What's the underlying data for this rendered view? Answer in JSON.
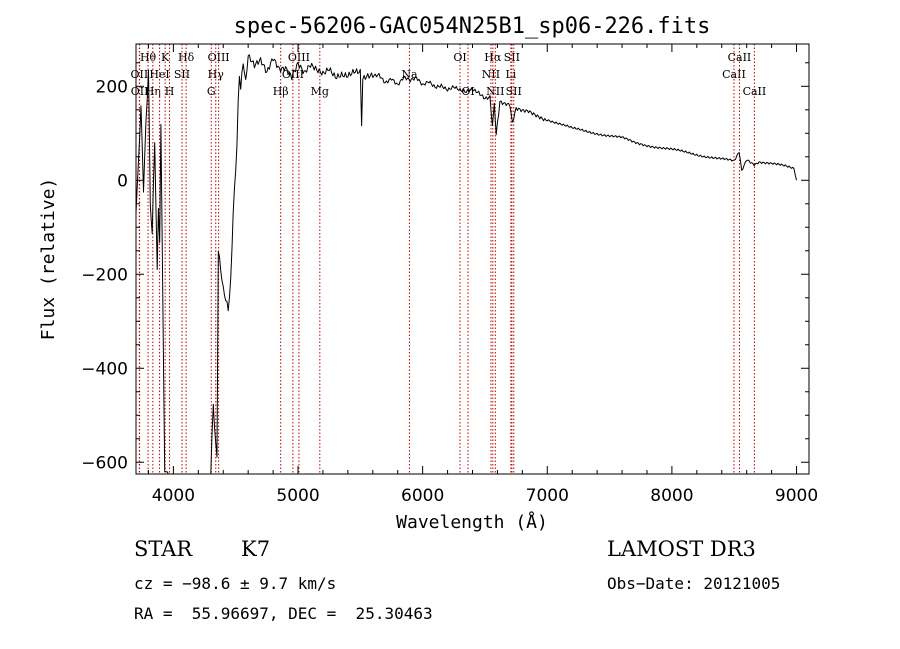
{
  "chart_data": {
    "type": "line",
    "title": "spec-56206-GAC054N25B1_sp06-226.fits",
    "xlabel": "Wavelength (Å)",
    "ylabel": "Flux (relative)",
    "xlim": [
      3700,
      9100
    ],
    "ylim": [
      -625,
      290
    ],
    "xticks": [
      4000,
      5000,
      6000,
      7000,
      8000,
      9000
    ],
    "yticks": [
      -600,
      -400,
      -200,
      0,
      200
    ],
    "series": [
      {
        "name": "flux",
        "x": [
          3700,
          3720,
          3740,
          3760,
          3780,
          3800,
          3815,
          3830,
          3850,
          3870,
          3880,
          3890,
          3900,
          3910,
          3930,
          3950,
          3960,
          3970,
          4000,
          4100,
          4200,
          4300,
          4320,
          4340,
          4350,
          4360,
          4380,
          4400,
          4420,
          4440,
          4460,
          4480,
          4500,
          4510,
          4520,
          4530,
          4540,
          4560,
          4580,
          4600,
          4650,
          4700,
          4750,
          4800,
          4850,
          4900,
          4950,
          5000,
          5050,
          5100,
          5150,
          5200,
          5250,
          5300,
          5350,
          5400,
          5450,
          5500,
          5510,
          5520,
          5550,
          5600,
          5650,
          5700,
          5750,
          5800,
          5850,
          5900,
          5950,
          6000,
          6050,
          6100,
          6150,
          6200,
          6250,
          6300,
          6350,
          6400,
          6450,
          6500,
          6540,
          6560,
          6575,
          6590,
          6620,
          6650,
          6700,
          6720,
          6750,
          6800,
          6850,
          6900,
          6950,
          7000,
          7050,
          7100,
          7200,
          7300,
          7400,
          7500,
          7600,
          7700,
          7800,
          7900,
          8000,
          8100,
          8200,
          8300,
          8400,
          8500,
          8540,
          8560,
          8600,
          8660,
          8700,
          8800,
          8900,
          8980,
          9000
        ],
        "y": [
          -60,
          40,
          160,
          -20,
          120,
          230,
          -50,
          -120,
          80,
          -200,
          -60,
          -140,
          110,
          -130,
          -620,
          -620,
          -625,
          -625,
          -625,
          -625,
          -625,
          -625,
          -480,
          -570,
          -590,
          -150,
          -190,
          -230,
          -250,
          -270,
          -210,
          -60,
          30,
          80,
          170,
          230,
          200,
          255,
          210,
          265,
          240,
          250,
          225,
          260,
          240,
          245,
          225,
          250,
          225,
          240,
          230,
          225,
          240,
          225,
          230,
          225,
          230,
          225,
          115,
          210,
          215,
          220,
          225,
          210,
          220,
          205,
          220,
          210,
          215,
          200,
          210,
          200,
          205,
          195,
          200,
          190,
          185,
          190,
          185,
          175,
          180,
          120,
          160,
          100,
          170,
          165,
          160,
          120,
          150,
          145,
          145,
          140,
          135,
          130,
          125,
          120,
          110,
          105,
          100,
          95,
          90,
          80,
          75,
          70,
          65,
          60,
          55,
          50,
          45,
          40,
          60,
          20,
          45,
          35,
          40,
          35,
          30,
          25,
          0
        ]
      }
    ],
    "lines": [
      {
        "name": "OII",
        "x": 3727,
        "row": 1
      },
      {
        "name": "OII",
        "x": 3729,
        "row": 2
      },
      {
        "name": "Hθ",
        "x": 3797,
        "row": 0
      },
      {
        "name": "Hη",
        "x": 3835,
        "row": 2
      },
      {
        "name": "K",
        "x": 3934,
        "row": 0
      },
      {
        "name": "H",
        "x": 3969,
        "row": 2
      },
      {
        "name": "HeI",
        "x": 3889,
        "row": 1
      },
      {
        "name": "SII",
        "x": 4069,
        "row": 1
      },
      {
        "name": "Hδ",
        "x": 4102,
        "row": 0
      },
      {
        "name": "G",
        "x": 4304,
        "row": 2
      },
      {
        "name": "Hγ",
        "x": 4340,
        "row": 1
      },
      {
        "name": "OIII",
        "x": 4363,
        "row": 0
      },
      {
        "name": "Hβ",
        "x": 4861,
        "row": 2
      },
      {
        "name": "OIII",
        "x": 4959,
        "row": 1
      },
      {
        "name": "OIII",
        "x": 5007,
        "row": 0
      },
      {
        "name": "Mg",
        "x": 5175,
        "row": 2
      },
      {
        "name": "Na",
        "x": 5894,
        "row": 1
      },
      {
        "name": "OI",
        "x": 6300,
        "row": 0
      },
      {
        "name": "OI",
        "x": 6364,
        "row": 2
      },
      {
        "name": "NII",
        "x": 6548,
        "row": 1
      },
      {
        "name": "Hα",
        "x": 6563,
        "row": 0
      },
      {
        "name": "NII",
        "x": 6583,
        "row": 2
      },
      {
        "name": "Li",
        "x": 6708,
        "row": 1
      },
      {
        "name": "SII",
        "x": 6716,
        "row": 0
      },
      {
        "name": "SII",
        "x": 6731,
        "row": 2
      },
      {
        "name": "CaII",
        "x": 8498,
        "row": 1
      },
      {
        "name": "CaII",
        "x": 8542,
        "row": 0
      },
      {
        "name": "CaII",
        "x": 8662,
        "row": 2
      }
    ],
    "grid": false
  },
  "info": {
    "class_label": "STAR",
    "subclass": "K7",
    "survey": "LAMOST DR3",
    "redshift": "cz = −98.6 ± 9.7 km/s",
    "obs_date": "Obs−Date: 20121005",
    "coords": "RA =  55.96697, DEC =  25.30463"
  }
}
